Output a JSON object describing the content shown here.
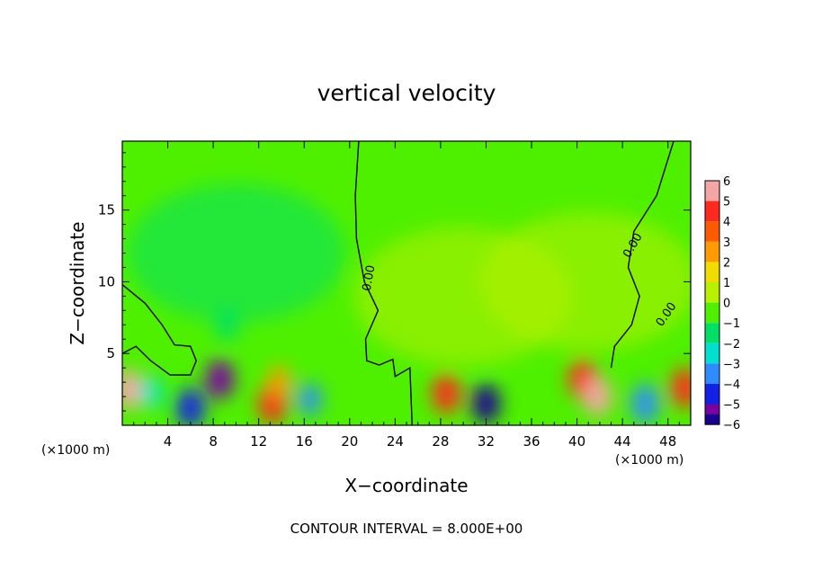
{
  "chart_data": {
    "type": "heatmap",
    "title": "vertical velocity",
    "xlabel": "X−coordinate",
    "ylabel": "Z−coordinate",
    "x_unit_left": "(×1000 m)",
    "x_unit_right": "(×1000 m)",
    "xlim": [
      0,
      50
    ],
    "ylim": [
      0,
      19.8
    ],
    "x_ticks": [
      "4",
      "8",
      "12",
      "16",
      "20",
      "24",
      "28",
      "32",
      "36",
      "40",
      "44",
      "48"
    ],
    "y_ticks": [
      "5",
      "10",
      "15"
    ],
    "x_tick_values": [
      4,
      8,
      12,
      16,
      20,
      24,
      28,
      32,
      36,
      40,
      44,
      48
    ],
    "y_tick_values": [
      5,
      10,
      15
    ],
    "colorbar": {
      "labels": [
        "6",
        "5",
        "4",
        "3",
        "2",
        "1",
        "0",
        "−1",
        "−2",
        "−3",
        "−4",
        "−5",
        "−6"
      ],
      "levels": [
        6,
        5,
        4,
        3,
        2,
        1,
        0,
        -1,
        -2,
        -3,
        -4,
        -5,
        -6
      ],
      "colors": [
        "#f4a6a6",
        "#ff2a1f",
        "#ff5a00",
        "#ff9a00",
        "#f1dc00",
        "#b8f000",
        "#4ef000",
        "#00e066",
        "#00e0d0",
        "#2f8cff",
        "#1420e6",
        "#1a0090",
        "#7a00a0"
      ]
    },
    "contour_labels": [
      "0.00",
      "0.00",
      "0.00"
    ],
    "contour_interval_text": "CONTOUR INTERVAL = 8.000E+00",
    "features": [
      {
        "x": 0.5,
        "z": 2.5,
        "w": 5.5,
        "kind": "updraft"
      },
      {
        "x": 2.5,
        "z": 2.3,
        "w": -2.5,
        "kind": "downdraft"
      },
      {
        "x": 6.0,
        "z": 1.2,
        "w": -4.0,
        "kind": "downdraft"
      },
      {
        "x": 8.6,
        "z": 3.2,
        "w": -6.0,
        "kind": "downdraft"
      },
      {
        "x": 9.2,
        "z": 7.0,
        "w": -1.5,
        "kind": "downdraft"
      },
      {
        "x": 13.2,
        "z": 1.5,
        "w": 5.0,
        "kind": "updraft"
      },
      {
        "x": 13.8,
        "z": 3.0,
        "w": 2.5,
        "kind": "updraft"
      },
      {
        "x": 16.5,
        "z": 1.8,
        "w": -3.0,
        "kind": "downdraft"
      },
      {
        "x": 28.5,
        "z": 2.2,
        "w": 4.5,
        "kind": "updraft"
      },
      {
        "x": 32.0,
        "z": 1.5,
        "w": -5.0,
        "kind": "downdraft"
      },
      {
        "x": 40.5,
        "z": 3.2,
        "w": 4.5,
        "kind": "updraft"
      },
      {
        "x": 41.8,
        "z": 2.0,
        "w": 6.0,
        "kind": "updraft"
      },
      {
        "x": 46.0,
        "z": 1.5,
        "w": -3.5,
        "kind": "downdraft"
      },
      {
        "x": 49.5,
        "z": 2.6,
        "w": 5.0,
        "kind": "updraft"
      },
      {
        "x": 41.0,
        "z": 10.0,
        "w": 1.2,
        "kind": "updraft"
      },
      {
        "x": 30.0,
        "z": 9.0,
        "w": 0.8,
        "kind": "updraft"
      },
      {
        "x": 10.0,
        "z": 12.0,
        "w": -0.9,
        "kind": "downdraft"
      }
    ],
    "zero_contours": [
      [
        [
          20.8,
          19.8
        ],
        [
          20.5,
          16
        ],
        [
          20.6,
          13
        ],
        [
          21.3,
          10
        ],
        [
          22.5,
          8
        ],
        [
          21.4,
          6
        ],
        [
          21.5,
          4.5
        ],
        [
          22.6,
          4.2
        ],
        [
          23.8,
          4.6
        ],
        [
          24.0,
          3.4
        ],
        [
          25.3,
          4.0
        ],
        [
          25.5,
          0
        ]
      ],
      [
        [
          48.5,
          19.8
        ],
        [
          47.0,
          16
        ],
        [
          45.0,
          13.5
        ],
        [
          44.5,
          11
        ],
        [
          45.5,
          9
        ],
        [
          44.8,
          7
        ],
        [
          43.3,
          5.5
        ],
        [
          43.0,
          4
        ]
      ],
      [
        [
          0,
          9.8
        ],
        [
          2.0,
          8.5
        ],
        [
          3.5,
          7.0
        ],
        [
          4.6,
          5.6
        ],
        [
          6.0,
          5.5
        ],
        [
          6.5,
          4.5
        ],
        [
          6.0,
          3.5
        ],
        [
          4.2,
          3.5
        ],
        [
          2.5,
          4.5
        ],
        [
          1.2,
          5.5
        ],
        [
          0,
          5.0
        ]
      ]
    ]
  }
}
